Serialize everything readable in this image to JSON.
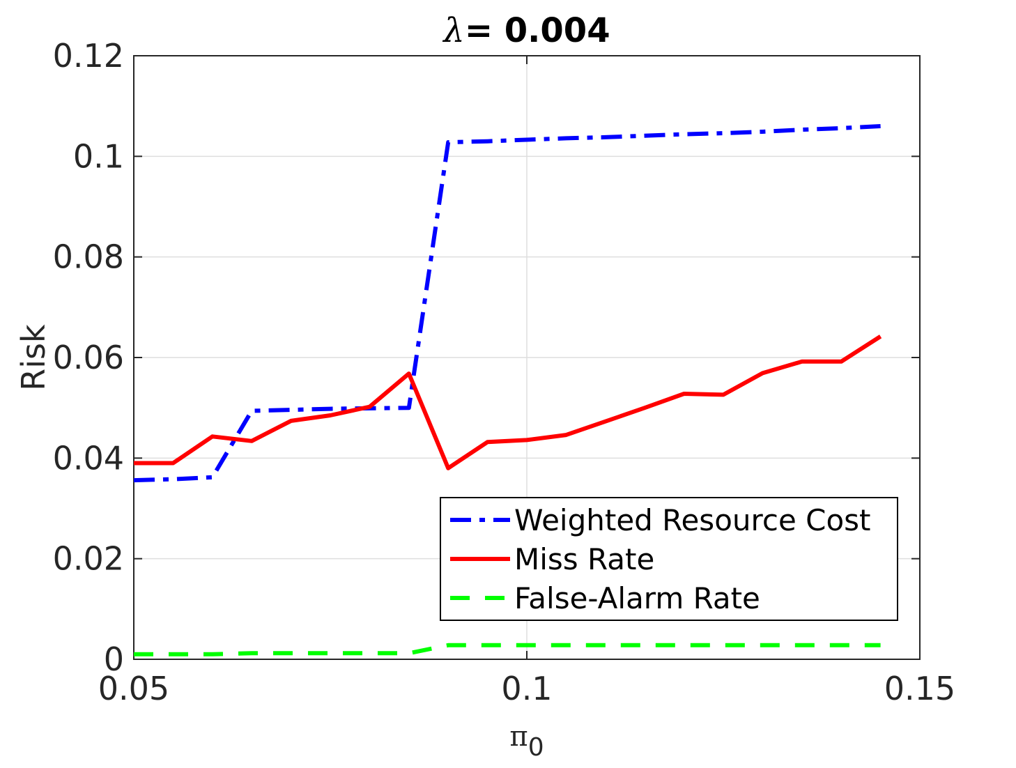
{
  "chart_data": {
    "type": "line",
    "title_symbol": "λ",
    "title_value": "= 0.004",
    "xlabel_symbol": "π",
    "xlabel_subscript": "0",
    "ylabel": "Risk",
    "xlim": [
      0.05,
      0.15
    ],
    "ylim": [
      0,
      0.12
    ],
    "xticks": [
      0.05,
      0.1,
      0.15
    ],
    "xtick_labels": [
      "0.05",
      "0.1",
      "0.15"
    ],
    "yticks": [
      0,
      0.02,
      0.04,
      0.06,
      0.08,
      0.1,
      0.12
    ],
    "ytick_labels": [
      "0",
      "0.02",
      "0.04",
      "0.06",
      "0.08",
      "0.1",
      "0.12"
    ],
    "grid": true,
    "legend_position": "bottom-right",
    "x": [
      0.05,
      0.055,
      0.06,
      0.065,
      0.07,
      0.075,
      0.08,
      0.085,
      0.09,
      0.095,
      0.1,
      0.105,
      0.11,
      0.115,
      0.12,
      0.125,
      0.13,
      0.135,
      0.14,
      0.145
    ],
    "series": [
      {
        "name": "Weighted Resource Cost",
        "color": "#0000ff",
        "dash": "dashdot",
        "values": [
          0.0356,
          0.0358,
          0.0362,
          0.0494,
          0.0496,
          0.0498,
          0.0499,
          0.05,
          0.1028,
          0.103,
          0.1033,
          0.1036,
          0.1038,
          0.1041,
          0.1044,
          0.1046,
          0.1049,
          0.1053,
          0.1056,
          0.106
        ]
      },
      {
        "name": "Miss Rate",
        "color": "#ff0000",
        "dash": "solid",
        "values": [
          0.039,
          0.039,
          0.0443,
          0.0434,
          0.0474,
          0.0485,
          0.0502,
          0.0568,
          0.038,
          0.0432,
          0.0436,
          0.0446,
          0.0473,
          0.05,
          0.0528,
          0.0526,
          0.0569,
          0.0592,
          0.0592,
          0.0642
        ]
      },
      {
        "name": "False-Alarm Rate",
        "color": "#00ff00",
        "dash": "dashed",
        "values": [
          0.001,
          0.001,
          0.001,
          0.0012,
          0.0012,
          0.0012,
          0.0012,
          0.0012,
          0.0028,
          0.0028,
          0.0028,
          0.0028,
          0.0028,
          0.0028,
          0.0028,
          0.0028,
          0.0028,
          0.0028,
          0.0028,
          0.0028
        ]
      }
    ]
  }
}
